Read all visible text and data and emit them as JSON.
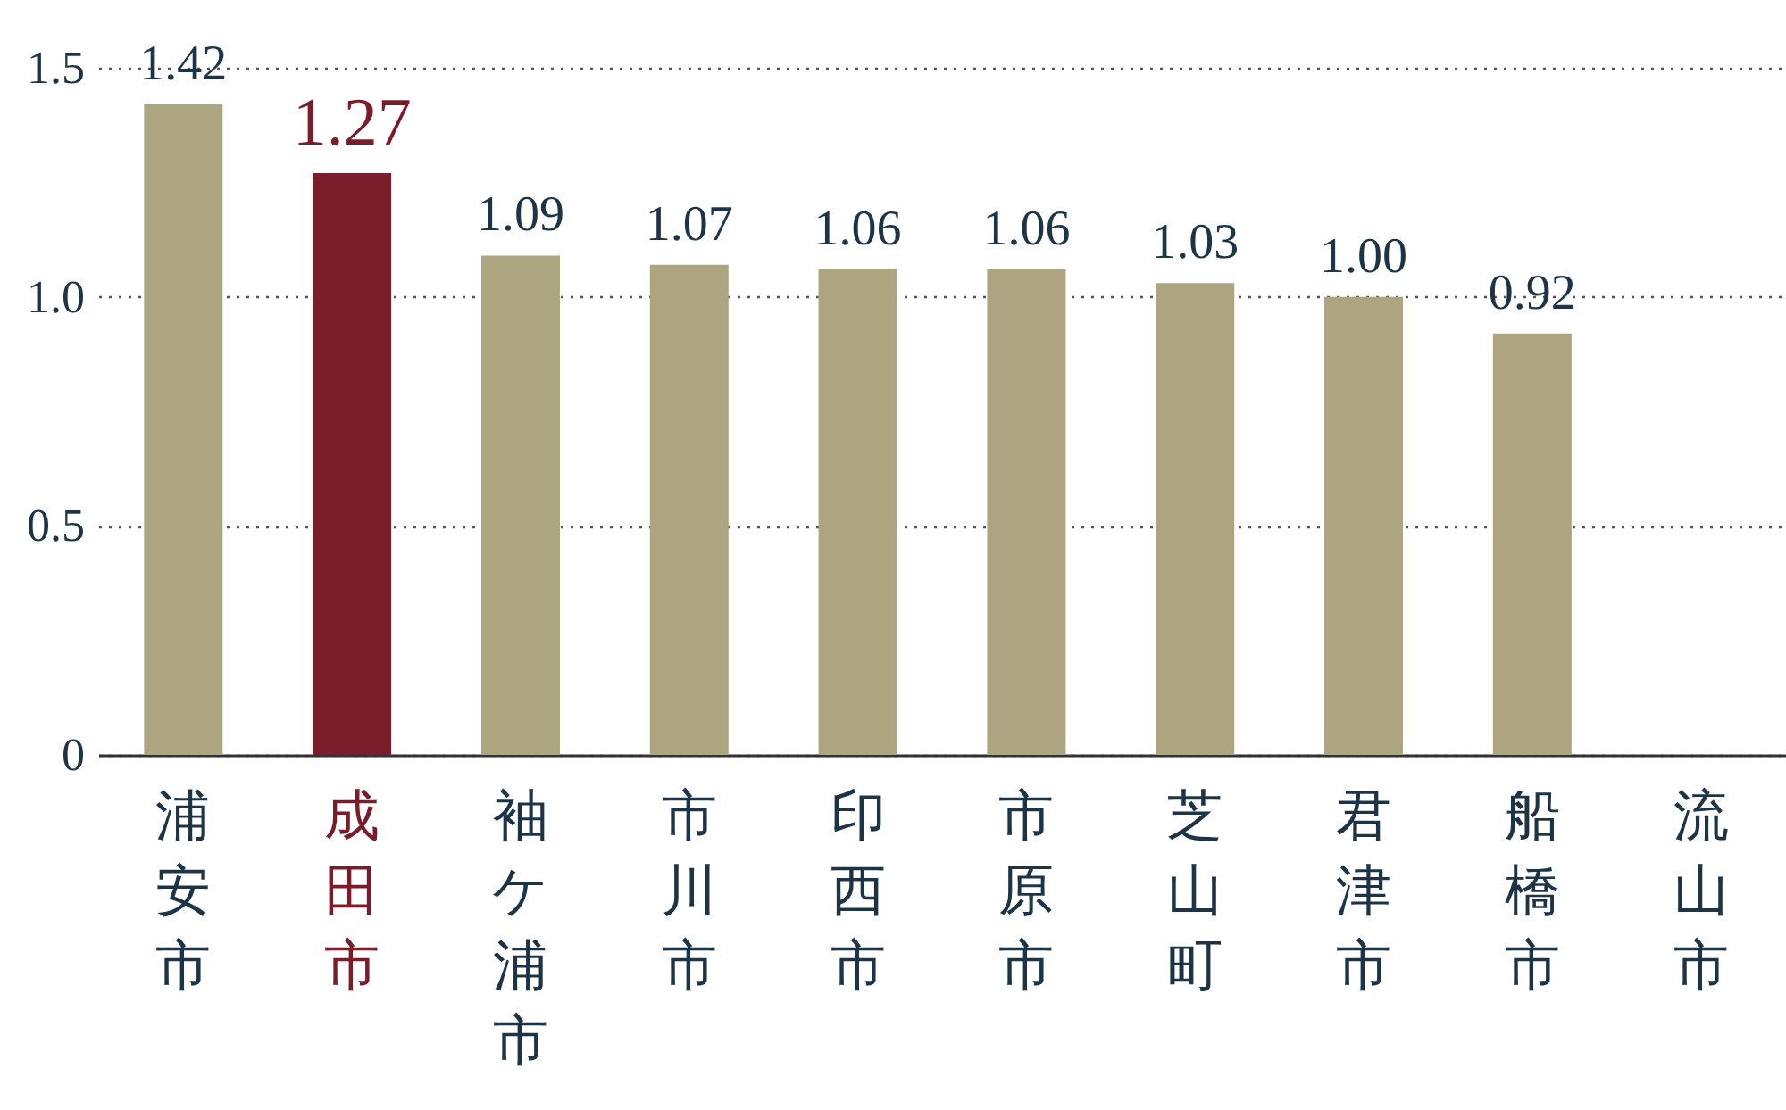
{
  "chart_data": {
    "type": "bar",
    "categories": [
      "浦安市",
      "成田市",
      "袖ケ浦市",
      "市川市",
      "印西市",
      "市原市",
      "芝山町",
      "君津市",
      "船橋市",
      "流山市"
    ],
    "values": [
      1.42,
      1.27,
      1.09,
      1.07,
      1.06,
      1.06,
      1.03,
      1.0,
      0.92,
      null
    ],
    "colors": [
      "#ada480",
      "#7b1c2a",
      "#ada480",
      "#ada480",
      "#ada480",
      "#ada480",
      "#ada480",
      "#ada480",
      "#ada480",
      "#ada480"
    ],
    "ylim": [
      0,
      1.5
    ],
    "yticks": [
      0,
      {
        "value": 0.5,
        "label": "0.5"
      },
      {
        "value": 1,
        "label": "1.0"
      },
      {
        "value": 1.5,
        "label": "1.5"
      }
    ],
    "value_labels": [
      "1.42",
      "1.27",
      "1.09",
      "1.07",
      "1.06",
      "1.06",
      "1.03",
      "1.00",
      "0.92",
      null
    ],
    "grid": "y"
  }
}
